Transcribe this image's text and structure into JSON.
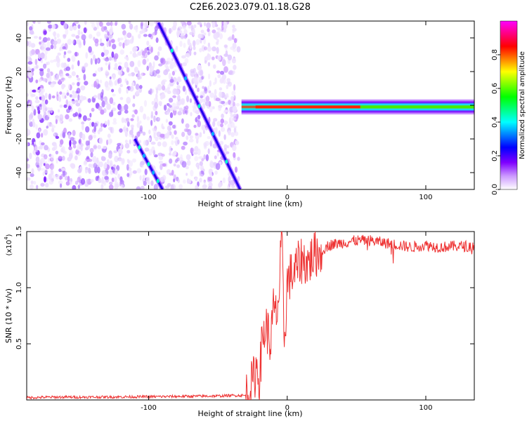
{
  "title": "C2E6.2023.079.01.18.G28",
  "chart_data": [
    {
      "type": "heatmap",
      "xlabel": "Height of straight line (km)",
      "ylabel": "Frequency (Hz)",
      "xlim": [
        -188,
        135
      ],
      "ylim": [
        -50,
        50
      ],
      "xticks": [
        -100,
        0,
        100
      ],
      "yticks": [
        -40,
        -20,
        0,
        20,
        40
      ],
      "colorbar": {
        "label": "Normalized spectral amplitude",
        "range": [
          0,
          1
        ],
        "ticks": [
          0.0,
          0.2,
          0.4,
          0.6,
          0.8
        ],
        "tick_labels": [
          "0.0",
          "0.2",
          "0.4",
          "0.6",
          "0.8"
        ],
        "colormap": [
          "#ffffff",
          "#cc99ff",
          "#7f00ff",
          "#0000ff",
          "#00ffff",
          "#00ff00",
          "#ffff00",
          "#ff0000",
          "#ff00ff"
        ]
      },
      "features": [
        {
          "kind": "diagonal-trace",
          "from": [
            -93,
            49
          ],
          "to": [
            -34,
            -50
          ],
          "amplitude": 0.3
        },
        {
          "kind": "diagonal-trace",
          "from": [
            -110,
            -20
          ],
          "to": [
            -90,
            -50
          ],
          "amplitude": 0.2
        },
        {
          "kind": "carrier-line",
          "freq": -1,
          "x_range": [
            -33,
            135
          ],
          "peak_amplitude": 1.0
        },
        {
          "kind": "noise-region",
          "x_range": [
            -188,
            -35
          ]
        }
      ]
    },
    {
      "type": "line",
      "xlabel": "Height of straight line (km)",
      "ylabel": "SNR (10 * v/v)",
      "scale_label": "(x10",
      "scale_exp": "4",
      "tick_scale": 10000,
      "xlim": [
        -188,
        135
      ],
      "ylim": [
        0,
        15000
      ],
      "xticks": [
        -100,
        0,
        100
      ],
      "yticks": [
        5000,
        10000,
        15000
      ],
      "ytick_labels": [
        "0.5",
        "1.0",
        "1.5"
      ],
      "color": "#ee3333",
      "series": [
        {
          "x": [
            -188,
            -170,
            -150,
            -130,
            -110,
            -90,
            -70,
            -50,
            -40,
            -30,
            -25,
            -22,
            -20,
            -18,
            -15,
            -12,
            -10,
            -8,
            -6,
            -4,
            -3,
            -2,
            0,
            2,
            5,
            8,
            10,
            15,
            20,
            25,
            30,
            40,
            50,
            60,
            70,
            80,
            90,
            100,
            110,
            120,
            135
          ],
          "y": [
            200,
            250,
            250,
            260,
            280,
            300,
            330,
            350,
            400,
            400,
            1500,
            3000,
            2000,
            5500,
            6500,
            5000,
            8000,
            7500,
            9000,
            15000,
            9500,
            5000,
            10500,
            11000,
            11300,
            12000,
            12500,
            12200,
            13000,
            13300,
            13800,
            14000,
            14200,
            14200,
            14000,
            13800,
            13600,
            13800,
            13600,
            13700,
            13700
          ]
        }
      ]
    }
  ]
}
